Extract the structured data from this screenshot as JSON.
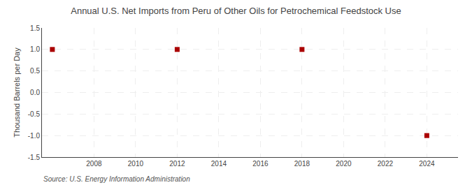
{
  "chart_data": {
    "type": "scatter",
    "title": "Annual U.S. Net Imports from Peru of Other Oils for Petrochemical Feedstock Use",
    "ylabel": "Thousand Barrels per Day",
    "annotations": [
      "Source: U.S. Energy Information Administration"
    ],
    "x": [
      2006,
      2012,
      2018,
      2024
    ],
    "values": [
      1.0,
      1.0,
      1.0,
      -1.0
    ],
    "color": "#aa0000",
    "marker": "square",
    "xlim": [
      2005.5,
      2025.5
    ],
    "xticks": [
      2008,
      2010,
      2012,
      2014,
      2016,
      2018,
      2020,
      2022,
      2024
    ],
    "ylim": [
      -1.5,
      1.5
    ],
    "yticks": [
      -1.5,
      {
        "value": -1.0,
        "label": "-1.0"
      },
      -0.5,
      {
        "value": 0.0,
        "label": "0.0"
      },
      0.5,
      {
        "value": 1.0,
        "label": "1.0"
      },
      1.5
    ],
    "grid": true
  }
}
